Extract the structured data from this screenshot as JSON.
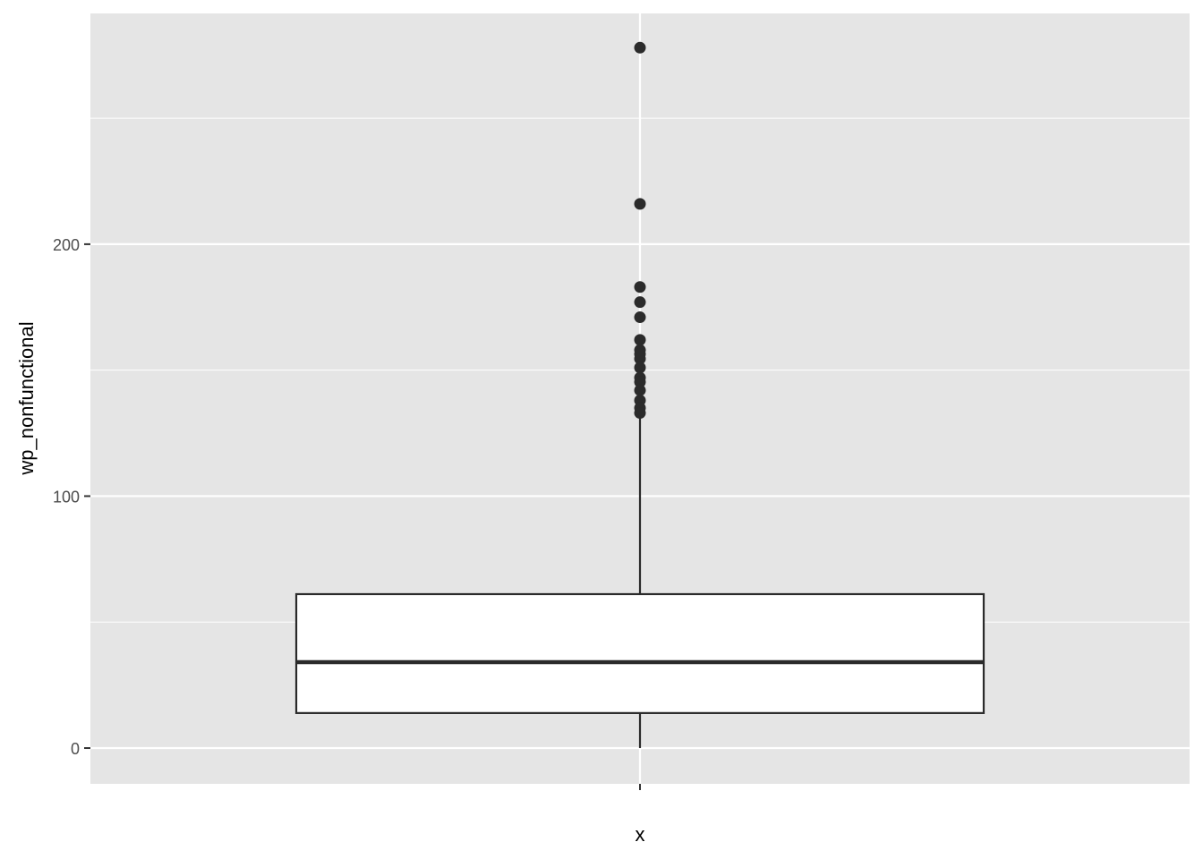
{
  "chart_data": {
    "type": "boxplot",
    "title": "",
    "xlabel": "x",
    "ylabel": "wp_nonfunctional",
    "x_tick_labels": [
      ""
    ],
    "y_ticks": [
      0,
      100,
      200
    ],
    "y_tick_labels": [
      "0",
      "100",
      "200"
    ],
    "ylim": [
      -14.2,
      291.6
    ],
    "grid": true,
    "box": {
      "lower_whisker": 0,
      "q1": 13.9,
      "median": 34.1,
      "q3": 61.1,
      "upper_whisker": 132.5
    },
    "outliers": [
      278,
      216,
      183,
      177,
      171,
      162,
      158,
      156.4,
      154.5,
      151,
      147,
      145.3,
      142,
      138,
      135,
      133
    ],
    "colors": {
      "panel": "#e5e5e5",
      "grid": "#ffffff",
      "box_fill": "#ffffff",
      "stroke": "#2b2b2b"
    }
  }
}
